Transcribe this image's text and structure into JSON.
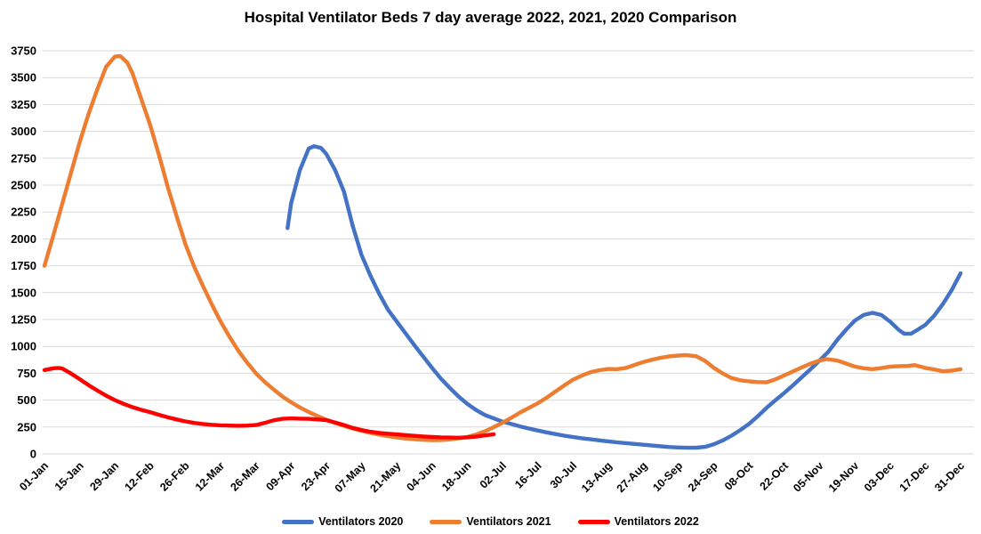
{
  "chart_data": {
    "type": "line",
    "title": "Hospital Ventilator Beds 7 day average 2022, 2021, 2020 Comparison",
    "xlabel": "",
    "ylabel": "",
    "ylim": [
      0,
      3750
    ],
    "y_ticks": [
      0,
      250,
      500,
      750,
      1000,
      1250,
      1500,
      1750,
      2000,
      2250,
      2500,
      2750,
      3000,
      3250,
      3500,
      3750
    ],
    "x_tick_labels": [
      "01-Jan",
      "15-Jan",
      "29-Jan",
      "12-Feb",
      "26-Feb",
      "12-Mar",
      "26-Mar",
      "09-Apr",
      "23-Apr",
      "07-May",
      "21-May",
      "04-Jun",
      "18-Jun",
      "02-Jul",
      "16-Jul",
      "30-Jul",
      "13-Aug",
      "27-Aug",
      "10-Sep",
      "24-Sep",
      "08-Oct",
      "22-Oct",
      "05-Nov",
      "19-Nov",
      "03-Dec",
      "17-Dec",
      "31-Dec"
    ],
    "x_unit": "week-of-year (0 = 01-Jan, 52 = 31-Dec, ticks every 2 weeks)",
    "grid": true,
    "legend_position": "bottom",
    "background": "#ffffff",
    "gridline_color": "#d9d9d9",
    "series": [
      {
        "name": "Ventilators 2020",
        "color": "#4472C4",
        "points": [
          [
            13.8,
            2100
          ],
          [
            14,
            2330
          ],
          [
            14.5,
            2640
          ],
          [
            15,
            2840
          ],
          [
            15.3,
            2862
          ],
          [
            15.7,
            2845
          ],
          [
            16,
            2790
          ],
          [
            16.5,
            2640
          ],
          [
            17,
            2440
          ],
          [
            17.5,
            2120
          ],
          [
            18,
            1850
          ],
          [
            18.5,
            1660
          ],
          [
            19,
            1490
          ],
          [
            19.5,
            1340
          ],
          [
            20,
            1230
          ],
          [
            20.5,
            1120
          ],
          [
            21,
            1010
          ],
          [
            21.5,
            905
          ],
          [
            22,
            800
          ],
          [
            22.5,
            700
          ],
          [
            23,
            615
          ],
          [
            23.5,
            535
          ],
          [
            24,
            465
          ],
          [
            24.5,
            408
          ],
          [
            25,
            362
          ],
          [
            25.5,
            330
          ],
          [
            26,
            300
          ],
          [
            26.5,
            278
          ],
          [
            27,
            256
          ],
          [
            27.5,
            236
          ],
          [
            28,
            218
          ],
          [
            28.5,
            200
          ],
          [
            29,
            185
          ],
          [
            29.5,
            170
          ],
          [
            30,
            157
          ],
          [
            30.5,
            146
          ],
          [
            31,
            136
          ],
          [
            31.5,
            126
          ],
          [
            32,
            117
          ],
          [
            32.5,
            108
          ],
          [
            33,
            100
          ],
          [
            33.5,
            93
          ],
          [
            34,
            85
          ],
          [
            34.5,
            78
          ],
          [
            35,
            70
          ],
          [
            35.5,
            64
          ],
          [
            36,
            60
          ],
          [
            36.5,
            57
          ],
          [
            37,
            58
          ],
          [
            37.5,
            65
          ],
          [
            38,
            90
          ],
          [
            38.5,
            125
          ],
          [
            39,
            170
          ],
          [
            39.5,
            222
          ],
          [
            40,
            280
          ],
          [
            40.5,
            352
          ],
          [
            41,
            430
          ],
          [
            41.5,
            500
          ],
          [
            42,
            568
          ],
          [
            42.5,
            640
          ],
          [
            43,
            715
          ],
          [
            43.5,
            790
          ],
          [
            44,
            868
          ],
          [
            44.5,
            950
          ],
          [
            45,
            1060
          ],
          [
            45.5,
            1155
          ],
          [
            46,
            1240
          ],
          [
            46.5,
            1292
          ],
          [
            47,
            1312
          ],
          [
            47.5,
            1292
          ],
          [
            48,
            1230
          ],
          [
            48.5,
            1152
          ],
          [
            48.8,
            1118
          ],
          [
            49.2,
            1118
          ],
          [
            49.5,
            1148
          ],
          [
            50,
            1200
          ],
          [
            50.5,
            1285
          ],
          [
            51,
            1395
          ],
          [
            51.5,
            1525
          ],
          [
            52,
            1680
          ]
        ]
      },
      {
        "name": "Ventilators 2021",
        "color": "#ED7D31",
        "points": [
          [
            0,
            1750
          ],
          [
            0.5,
            2030
          ],
          [
            1,
            2320
          ],
          [
            1.5,
            2610
          ],
          [
            2,
            2900
          ],
          [
            2.5,
            3160
          ],
          [
            3,
            3390
          ],
          [
            3.5,
            3600
          ],
          [
            4,
            3695
          ],
          [
            4.3,
            3700
          ],
          [
            4.7,
            3640
          ],
          [
            5,
            3540
          ],
          [
            5.5,
            3300
          ],
          [
            6,
            3060
          ],
          [
            6.5,
            2780
          ],
          [
            7,
            2480
          ],
          [
            7.5,
            2210
          ],
          [
            8,
            1950
          ],
          [
            8.5,
            1740
          ],
          [
            9,
            1560
          ],
          [
            9.5,
            1390
          ],
          [
            10,
            1230
          ],
          [
            10.5,
            1090
          ],
          [
            11,
            960
          ],
          [
            11.5,
            850
          ],
          [
            12,
            750
          ],
          [
            12.5,
            670
          ],
          [
            13,
            600
          ],
          [
            13.5,
            535
          ],
          [
            14,
            480
          ],
          [
            14.5,
            432
          ],
          [
            15,
            390
          ],
          [
            15.5,
            352
          ],
          [
            16,
            318
          ],
          [
            16.5,
            288
          ],
          [
            17,
            262
          ],
          [
            17.5,
            237
          ],
          [
            18,
            215
          ],
          [
            18.5,
            196
          ],
          [
            19,
            180
          ],
          [
            19.5,
            165
          ],
          [
            20,
            152
          ],
          [
            20.5,
            143
          ],
          [
            21,
            136
          ],
          [
            21.5,
            131
          ],
          [
            22,
            128
          ],
          [
            22.5,
            129
          ],
          [
            23,
            134
          ],
          [
            23.5,
            144
          ],
          [
            24,
            158
          ],
          [
            24.5,
            180
          ],
          [
            25,
            210
          ],
          [
            25.5,
            248
          ],
          [
            26,
            290
          ],
          [
            26.5,
            336
          ],
          [
            27,
            385
          ],
          [
            27.5,
            428
          ],
          [
            28,
            470
          ],
          [
            28.5,
            522
          ],
          [
            29,
            580
          ],
          [
            29.5,
            636
          ],
          [
            30,
            690
          ],
          [
            30.5,
            728
          ],
          [
            31,
            760
          ],
          [
            31.5,
            778
          ],
          [
            32,
            790
          ],
          [
            32.5,
            788
          ],
          [
            33,
            800
          ],
          [
            33.5,
            828
          ],
          [
            34,
            855
          ],
          [
            34.5,
            877
          ],
          [
            35,
            895
          ],
          [
            35.5,
            908
          ],
          [
            36,
            915
          ],
          [
            36.4,
            920
          ],
          [
            37,
            908
          ],
          [
            37.5,
            865
          ],
          [
            38,
            800
          ],
          [
            38.5,
            748
          ],
          [
            39,
            705
          ],
          [
            39.5,
            685
          ],
          [
            40,
            675
          ],
          [
            40.5,
            668
          ],
          [
            41,
            666
          ],
          [
            41.5,
            694
          ],
          [
            42,
            730
          ],
          [
            42.5,
            768
          ],
          [
            43,
            805
          ],
          [
            43.5,
            840
          ],
          [
            44,
            868
          ],
          [
            44.4,
            882
          ],
          [
            45,
            868
          ],
          [
            45.5,
            840
          ],
          [
            46,
            812
          ],
          [
            46.5,
            796
          ],
          [
            47,
            788
          ],
          [
            47.5,
            798
          ],
          [
            48,
            812
          ],
          [
            48.5,
            816
          ],
          [
            49,
            818
          ],
          [
            49.4,
            826
          ],
          [
            50,
            800
          ],
          [
            50.5,
            786
          ],
          [
            51,
            768
          ],
          [
            51.5,
            775
          ],
          [
            52,
            788
          ]
        ]
      },
      {
        "name": "Ventilators 2022",
        "color": "#FF0000",
        "points": [
          [
            0,
            780
          ],
          [
            0.5,
            796
          ],
          [
            0.8,
            800
          ],
          [
            1,
            795
          ],
          [
            1.5,
            748
          ],
          [
            2,
            695
          ],
          [
            2.5,
            640
          ],
          [
            3,
            590
          ],
          [
            3.5,
            542
          ],
          [
            4,
            500
          ],
          [
            4.5,
            465
          ],
          [
            5,
            435
          ],
          [
            5.5,
            410
          ],
          [
            6,
            388
          ],
          [
            6.5,
            363
          ],
          [
            7,
            340
          ],
          [
            7.5,
            320
          ],
          [
            8,
            302
          ],
          [
            8.5,
            288
          ],
          [
            9,
            278
          ],
          [
            9.5,
            271
          ],
          [
            10,
            266
          ],
          [
            10.5,
            263
          ],
          [
            11,
            262
          ],
          [
            11.5,
            263
          ],
          [
            12,
            268
          ],
          [
            12.5,
            288
          ],
          [
            13,
            312
          ],
          [
            13.5,
            326
          ],
          [
            14,
            330
          ],
          [
            14.5,
            328
          ],
          [
            15,
            326
          ],
          [
            15.5,
            320
          ],
          [
            16,
            314
          ],
          [
            16.5,
            292
          ],
          [
            17,
            268
          ],
          [
            17.5,
            242
          ],
          [
            18,
            222
          ],
          [
            18.5,
            206
          ],
          [
            19,
            195
          ],
          [
            19.5,
            188
          ],
          [
            20,
            181
          ],
          [
            20.5,
            175
          ],
          [
            21,
            168
          ],
          [
            21.5,
            162
          ],
          [
            22,
            158
          ],
          [
            22.5,
            154
          ],
          [
            23,
            152
          ],
          [
            23.5,
            151
          ],
          [
            24,
            154
          ],
          [
            24.5,
            161
          ],
          [
            25,
            172
          ],
          [
            25.5,
            182
          ]
        ]
      }
    ]
  }
}
